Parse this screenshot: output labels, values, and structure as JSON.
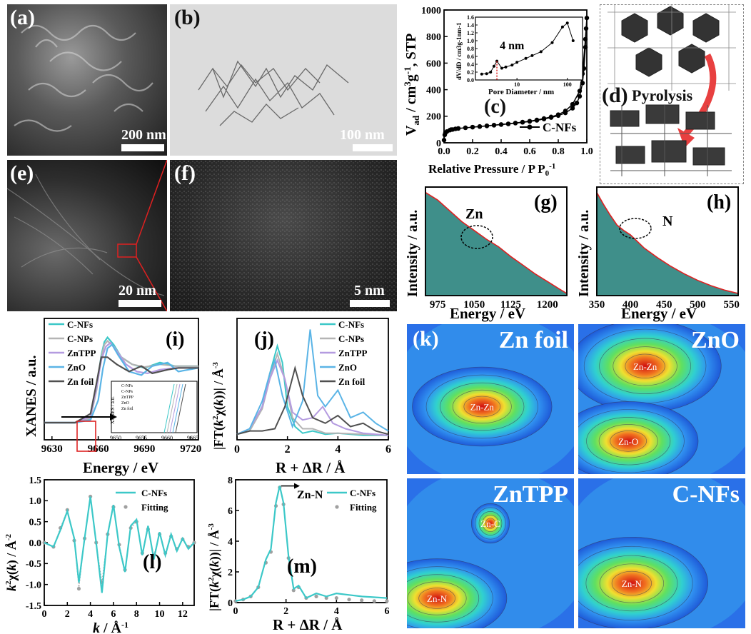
{
  "panel_labels": {
    "a": "(a)",
    "b": "(b)",
    "c": "(c)",
    "d": "(d)",
    "e": "(e)",
    "f": "(f)",
    "g": "(g)",
    "h": "(h)",
    "i": "(i)",
    "j": "(j)",
    "k": "(k)",
    "l": "(l)",
    "m": "(m)"
  },
  "micrographs": {
    "a_scale": "200 nm",
    "b_scale": "100 nm",
    "e_scale": "20 nm",
    "f_scale": "5 nm"
  },
  "schematic": {
    "arrow_label": "Pyrolysis"
  },
  "wavelet": {
    "titles": [
      "Zn foil",
      "ZnO",
      "ZnTPP",
      "C-NFs"
    ],
    "labels": {
      "zn_foil": [
        "Zn-Zn"
      ],
      "zno": [
        "Zn-Zn",
        "Zn-O"
      ],
      "zntpp": [
        "Zn-C",
        "Zn-N"
      ],
      "cnfs": [
        "Zn-N"
      ]
    }
  },
  "colors": {
    "cnfs": "#3cc8c8",
    "cnps": "#b4b4b4",
    "zntpp": "#b49be0",
    "zno": "#5ab4e6",
    "znfoil": "#505050",
    "edx_fill": "#3f8f8a",
    "edx_line": "#dd2222",
    "fit": "#a0a0a0"
  },
  "chart_data": [
    {
      "id": "c",
      "type": "line",
      "xlabel": "Relative Pressure / P P0-1",
      "ylabel": "Vad / cm3g-1, STP",
      "xlim": [
        0,
        1.0
      ],
      "ylim": [
        0,
        1000
      ],
      "xticks": [
        "0.0",
        "0.2",
        "0.4",
        "0.6",
        "0.8",
        "1.0"
      ],
      "yticks": [
        "0",
        "200",
        "400",
        "600",
        "800",
        "1000"
      ],
      "legend": "C-NFs",
      "series": [
        {
          "name": "C-NFs",
          "x": [
            0.0,
            0.005,
            0.01,
            0.02,
            0.04,
            0.06,
            0.08,
            0.1,
            0.15,
            0.2,
            0.25,
            0.3,
            0.35,
            0.4,
            0.45,
            0.5,
            0.55,
            0.6,
            0.65,
            0.7,
            0.75,
            0.8,
            0.85,
            0.9,
            0.93,
            0.95,
            0.97,
            0.98,
            0.99,
            0.995,
            1.0,
            0.99,
            0.97,
            0.95,
            0.9,
            0.85,
            0.8,
            0.75,
            0.7,
            0.65,
            0.6,
            0.55,
            0.5,
            0.45,
            0.4,
            0.35,
            0.3,
            0.25,
            0.2,
            0.15,
            0.1,
            0.05
          ],
          "y": [
            20,
            60,
            75,
            85,
            95,
            100,
            105,
            108,
            113,
            118,
            122,
            127,
            132,
            137,
            142,
            148,
            154,
            161,
            169,
            179,
            190,
            205,
            225,
            260,
            300,
            350,
            450,
            560,
            720,
            860,
            940,
            780,
            520,
            390,
            290,
            240,
            212,
            195,
            183,
            172,
            163,
            156,
            149,
            143,
            138,
            133,
            128,
            123,
            118,
            113,
            108,
            100
          ]
        }
      ],
      "inset": {
        "xlabel": "Pore Diameter / nm",
        "ylabel": "dV/dD / cm3g-1nm-1",
        "annotation": "4 nm",
        "xscale": "log",
        "xticks": [
          "10",
          "100"
        ],
        "ylim": [
          0,
          1.6
        ],
        "yticks": [
          "0.0",
          "0.2",
          "0.4",
          "0.6",
          "0.8",
          "1.0",
          "1.2",
          "1.4",
          "1.6"
        ],
        "x": [
          2,
          2.5,
          3,
          3.5,
          4,
          5,
          6,
          8,
          10,
          15,
          20,
          30,
          50,
          80,
          100,
          130
        ],
        "y": [
          0.15,
          0.16,
          0.2,
          0.35,
          0.48,
          0.3,
          0.33,
          0.38,
          0.45,
          0.55,
          0.62,
          0.72,
          0.95,
          1.35,
          1.45,
          1.0
        ]
      }
    },
    {
      "id": "g",
      "type": "area",
      "xlabel": "Energy / eV",
      "ylabel": "Intensity / a.u.",
      "annotation": "Zn",
      "xlim": [
        950,
        1240
      ],
      "xticks": [
        "975",
        "1050",
        "1125",
        "1200"
      ],
      "x": [
        950,
        975,
        1000,
        1025,
        1050,
        1075,
        1100,
        1125,
        1150,
        1175,
        1200,
        1225,
        1240
      ],
      "y": [
        0.95,
        0.88,
        0.78,
        0.68,
        0.6,
        0.52,
        0.45,
        0.36,
        0.28,
        0.2,
        0.13,
        0.06,
        0.02
      ]
    },
    {
      "id": "h",
      "type": "area",
      "xlabel": "Energy / eV",
      "ylabel": "Intensity / a.u.",
      "annotation": "N",
      "xlim": [
        350,
        560
      ],
      "xticks": [
        "350",
        "400",
        "450",
        "500",
        "550"
      ],
      "x": [
        350,
        360,
        370,
        380,
        390,
        400,
        410,
        420,
        440,
        460,
        480,
        500,
        520,
        540,
        560
      ],
      "y": [
        0.95,
        0.84,
        0.74,
        0.65,
        0.6,
        0.56,
        0.5,
        0.44,
        0.35,
        0.27,
        0.2,
        0.14,
        0.09,
        0.05,
        0.02
      ]
    },
    {
      "id": "i",
      "type": "line",
      "xlabel": "Energy / eV",
      "ylabel": "XANES / a.u.",
      "xlim": [
        9625,
        9725
      ],
      "xticks": [
        "9630",
        "9660",
        "9690",
        "9720"
      ],
      "series": [
        {
          "name": "C-NFs",
          "x": [
            9625,
            9645,
            9655,
            9659,
            9662,
            9664,
            9666,
            9670,
            9675,
            9682,
            9690,
            9700,
            9710,
            9725
          ],
          "y": [
            0.05,
            0.05,
            0.1,
            0.45,
            0.8,
            0.95,
            1.0,
            0.92,
            0.78,
            0.7,
            0.66,
            0.72,
            0.68,
            0.68
          ]
        },
        {
          "name": "C-NPs",
          "x": [
            9625,
            9645,
            9655,
            9659,
            9662,
            9664,
            9666,
            9670,
            9675,
            9682,
            9690,
            9700,
            9710,
            9725
          ],
          "y": [
            0.05,
            0.05,
            0.1,
            0.42,
            0.78,
            0.92,
            0.96,
            0.9,
            0.78,
            0.7,
            0.67,
            0.7,
            0.68,
            0.68
          ]
        },
        {
          "name": "ZnTPP",
          "x": [
            9625,
            9645,
            9655,
            9659,
            9662,
            9665,
            9668,
            9672,
            9678,
            9685,
            9692,
            9700,
            9710,
            9725
          ],
          "y": [
            0.05,
            0.05,
            0.12,
            0.45,
            0.75,
            0.9,
            0.94,
            0.85,
            0.7,
            0.62,
            0.6,
            0.64,
            0.66,
            0.66
          ]
        },
        {
          "name": "ZnO",
          "x": [
            9625,
            9645,
            9655,
            9660,
            9663,
            9666,
            9669,
            9673,
            9680,
            9688,
            9695,
            9705,
            9712,
            9725
          ],
          "y": [
            0.05,
            0.05,
            0.08,
            0.3,
            0.65,
            0.88,
            0.92,
            0.8,
            0.62,
            0.58,
            0.68,
            0.72,
            0.62,
            0.66
          ]
        },
        {
          "name": "Zn foil",
          "x": [
            9625,
            9645,
            9655,
            9659,
            9662,
            9666,
            9672,
            9680,
            9688,
            9695,
            9705,
            9712,
            9725
          ],
          "y": [
            0.05,
            0.05,
            0.15,
            0.5,
            0.78,
            0.78,
            0.7,
            0.62,
            0.68,
            0.6,
            0.64,
            0.66,
            0.66
          ]
        }
      ],
      "inset": {
        "xlim": [
          9650,
          9665
        ],
        "xticks": [
          "9650",
          "9655",
          "9660",
          "9665"
        ],
        "ylabel": "XANES / a.u."
      }
    },
    {
      "id": "j",
      "type": "line",
      "xlabel": "R + ΔR / Å",
      "ylabel": "|FT(k2χ(k))| / Å-3",
      "xlim": [
        0,
        6
      ],
      "xticks": [
        "0",
        "2",
        "4",
        "6"
      ],
      "series": [
        {
          "name": "C-NFs",
          "x": [
            0,
            0.5,
            1.0,
            1.3,
            1.6,
            1.8,
            2.0,
            2.3,
            2.6,
            3.0,
            3.5,
            4.0,
            5.0,
            6.0
          ],
          "y": [
            0.05,
            0.08,
            0.3,
            0.6,
            0.85,
            0.7,
            0.3,
            0.12,
            0.06,
            0.08,
            0.05,
            0.06,
            0.04,
            0.04
          ]
        },
        {
          "name": "C-NPs",
          "x": [
            0,
            0.5,
            1.0,
            1.3,
            1.6,
            1.9,
            2.2,
            2.6,
            3.0,
            3.5,
            4.0,
            5.0,
            6.0
          ],
          "y": [
            0.05,
            0.08,
            0.28,
            0.55,
            0.78,
            0.55,
            0.2,
            0.1,
            0.1,
            0.06,
            0.06,
            0.05,
            0.04
          ]
        },
        {
          "name": "ZnTPP",
          "x": [
            0,
            0.5,
            1.0,
            1.3,
            1.6,
            1.9,
            2.2,
            2.6,
            3.0,
            3.4,
            3.8,
            4.3,
            5.0,
            6.0
          ],
          "y": [
            0.05,
            0.1,
            0.3,
            0.55,
            0.72,
            0.55,
            0.25,
            0.18,
            0.2,
            0.3,
            0.15,
            0.1,
            0.06,
            0.04
          ]
        },
        {
          "name": "ZnO",
          "x": [
            0,
            0.5,
            1.0,
            1.3,
            1.5,
            1.8,
            2.2,
            2.6,
            2.9,
            3.2,
            3.5,
            4.0,
            4.5,
            5.0,
            5.5,
            6.0
          ],
          "y": [
            0.05,
            0.1,
            0.35,
            0.6,
            0.72,
            0.4,
            0.12,
            0.35,
            1.0,
            0.4,
            0.3,
            0.45,
            0.2,
            0.25,
            0.15,
            0.08
          ]
        },
        {
          "name": "Zn foil",
          "x": [
            0,
            0.5,
            1.0,
            1.5,
            1.9,
            2.3,
            2.6,
            3.0,
            3.5,
            4.0,
            4.5,
            5.0,
            5.5,
            6.0
          ],
          "y": [
            0.05,
            0.08,
            0.08,
            0.1,
            0.3,
            0.65,
            0.4,
            0.2,
            0.15,
            0.22,
            0.12,
            0.15,
            0.08,
            0.05
          ]
        }
      ]
    },
    {
      "id": "l",
      "type": "line",
      "xlabel": "k / Å-1",
      "ylabel": "k2χ(k) / Å-2",
      "xlim": [
        0,
        13
      ],
      "ylim": [
        -1.5,
        1.5
      ],
      "xticks": [
        "0",
        "2",
        "4",
        "6",
        "8",
        "10",
        "12"
      ],
      "yticks": [
        "-1.5",
        "-1.0",
        "-0.5",
        "0.0",
        "0.5",
        "1.0",
        "1.5"
      ],
      "series": [
        {
          "name": "C-NFs",
          "x": [
            0,
            0.8,
            1.4,
            2.0,
            2.6,
            3.0,
            3.5,
            4.0,
            4.5,
            5.0,
            5.5,
            6.0,
            6.5,
            7.0,
            7.5,
            8.0,
            8.5,
            9.0,
            9.5,
            10.0,
            10.5,
            11.0,
            11.5,
            12.0,
            12.5,
            13.0
          ],
          "y": [
            0,
            -0.1,
            0.3,
            0.75,
            0.1,
            -0.95,
            0.1,
            1.1,
            0.0,
            -1.2,
            0.2,
            0.9,
            -0.1,
            -0.7,
            0.4,
            0.55,
            -0.3,
            0.4,
            -0.4,
            0.25,
            -0.3,
            0.2,
            -0.2,
            0.1,
            -0.15,
            0.0
          ]
        },
        {
          "name": "Fitting",
          "x": [
            0,
            0.8,
            1.4,
            2.0,
            2.6,
            3.0,
            3.5,
            4.0,
            4.5,
            5.0,
            5.5,
            6.0,
            6.5,
            7.0,
            7.5,
            8.0,
            8.5,
            9.0,
            9.5,
            10.0,
            10.5,
            11.0,
            11.5,
            12.0,
            12.5,
            13.0
          ],
          "y": [
            0,
            -0.1,
            0.35,
            0.78,
            0.05,
            -1.1,
            0.1,
            1.1,
            0.0,
            -0.95,
            0.2,
            0.85,
            -0.05,
            -0.65,
            0.35,
            0.5,
            -0.25,
            0.32,
            -0.3,
            0.2,
            -0.25,
            0.15,
            -0.15,
            0.08,
            -0.1,
            0.0
          ]
        }
      ]
    },
    {
      "id": "m",
      "type": "line",
      "xlabel": "R + ΔR / Å",
      "ylabel": "|FT(k2χ(k))| / Å-3",
      "annotation": "Zn-N",
      "xlim": [
        0,
        6
      ],
      "ylim": [
        0,
        8
      ],
      "xticks": [
        "0",
        "2",
        "4",
        "6"
      ],
      "yticks": [
        "0",
        "2",
        "4",
        "6",
        "8"
      ],
      "series": [
        {
          "name": "C-NFs",
          "x": [
            0,
            0.3,
            0.6,
            0.9,
            1.2,
            1.4,
            1.6,
            1.75,
            1.9,
            2.1,
            2.3,
            2.5,
            2.8,
            3.2,
            3.6,
            4.0,
            4.5,
            5.0,
            5.5,
            6.0
          ],
          "y": [
            0.1,
            0.2,
            0.4,
            1.0,
            2.8,
            3.5,
            6.5,
            7.6,
            6.5,
            3.0,
            0.9,
            1.1,
            0.3,
            0.6,
            0.4,
            0.6,
            0.5,
            0.4,
            0.35,
            0.3
          ]
        },
        {
          "name": "Fitting",
          "x": [
            0,
            0.3,
            0.6,
            0.9,
            1.2,
            1.4,
            1.6,
            1.75,
            1.9,
            2.1,
            2.3,
            2.5,
            2.8,
            3.2,
            3.6,
            4.0,
            4.5,
            5.0,
            5.5,
            6.0
          ],
          "y": [
            0.1,
            0.2,
            0.4,
            1.0,
            2.6,
            3.3,
            6.3,
            7.5,
            6.4,
            2.9,
            0.8,
            1.0,
            0.3,
            0.4,
            0.3,
            0.3,
            0.2,
            0.15,
            0.1,
            0.1
          ]
        }
      ]
    }
  ]
}
